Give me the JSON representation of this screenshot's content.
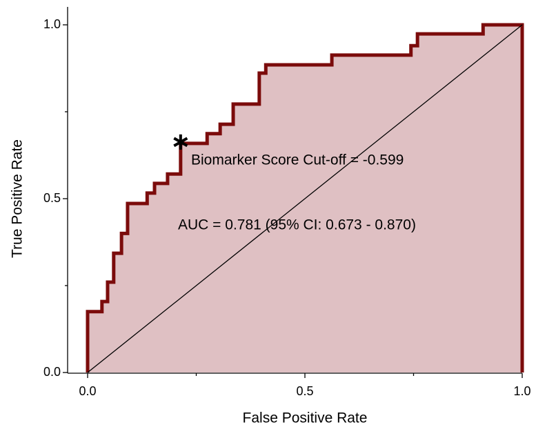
{
  "chart_data": {
    "type": "roc",
    "xlabel": "False Positive Rate",
    "ylabel": "True Positive Rate",
    "xlim": [
      0,
      1
    ],
    "ylim": [
      0,
      1
    ],
    "xticks": [
      {
        "value": 0,
        "label": "0.0"
      },
      0.5,
      {
        "value": 1,
        "label": "1.0"
      }
    ],
    "yticks": [
      {
        "value": 0,
        "label": "0.0"
      },
      0.5,
      {
        "value": 1,
        "label": "1.0"
      }
    ],
    "xticks_minor": [
      0.25,
      0.75
    ],
    "yticks_minor": [
      0.25,
      0.75
    ],
    "series": [
      {
        "color": "#7b0b0b",
        "fill": "#dfc0c3",
        "x": [
          0,
          0,
          0.033,
          0.033,
          0.046,
          0.046,
          0.06,
          0.06,
          0.078,
          0.078,
          0.092,
          0.092,
          0.137,
          0.137,
          0.154,
          0.154,
          0.184,
          0.184,
          0.214,
          0.214,
          0.275,
          0.275,
          0.305,
          0.305,
          0.335,
          0.335,
          0.395,
          0.395,
          0.41,
          0.41,
          0.562,
          0.562,
          0.744,
          0.744,
          0.759,
          0.759,
          0.91,
          0.91,
          1,
          1
        ],
        "values": [
          0,
          0.175,
          0.175,
          0.204,
          0.204,
          0.26,
          0.26,
          0.343,
          0.343,
          0.4,
          0.4,
          0.486,
          0.486,
          0.516,
          0.516,
          0.544,
          0.544,
          0.571,
          0.571,
          0.659,
          0.659,
          0.687,
          0.687,
          0.714,
          0.714,
          0.772,
          0.772,
          0.861,
          0.861,
          0.885,
          0.885,
          0.913,
          0.913,
          0.94,
          0.94,
          0.974,
          0.974,
          1,
          1,
          0
        ]
      }
    ],
    "cutoff_point": {
      "x": 0.214,
      "y": 0.659
    },
    "annotations": [
      "Biomarker Score Cut-off = -0.599",
      "AUC = 0.781 (95% CI: 0.673 - 0.870)"
    ]
  }
}
